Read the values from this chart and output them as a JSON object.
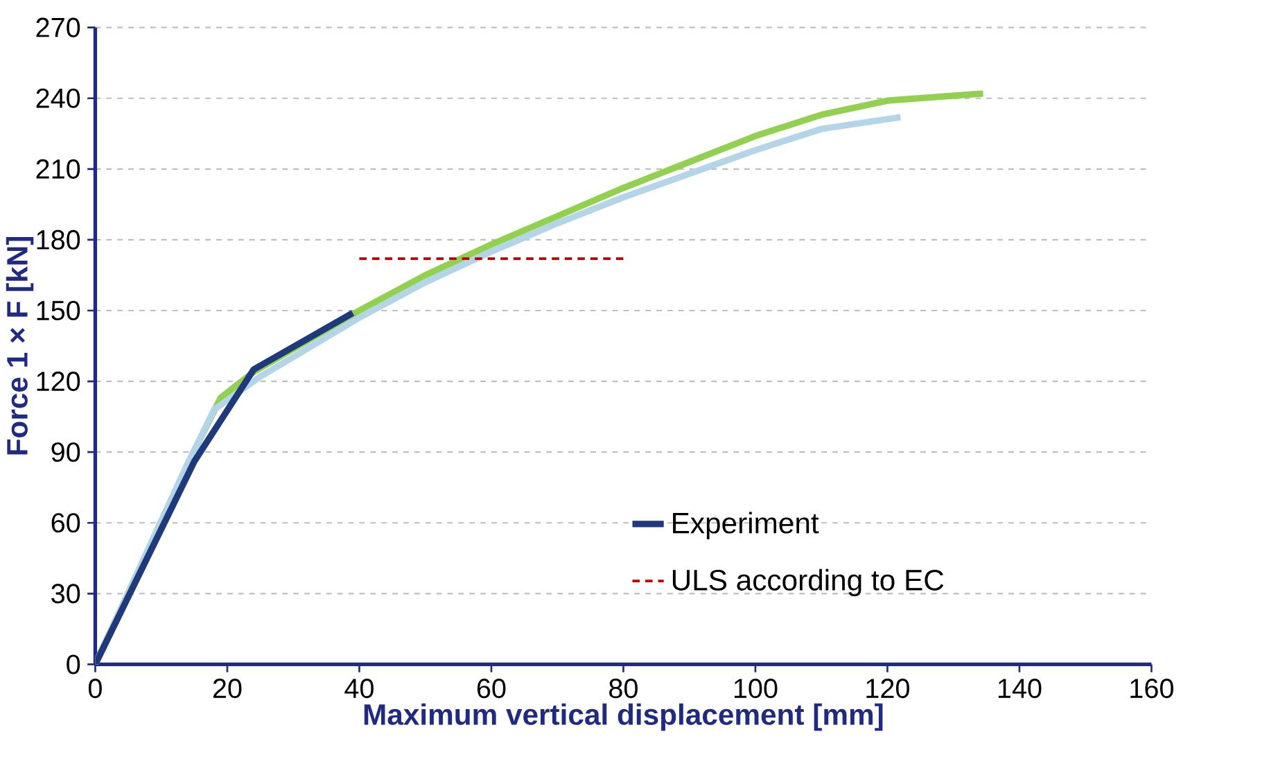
{
  "chart_data": {
    "type": "line",
    "xlabel": "Maximum vertical displacement [mm]",
    "ylabel": "Force 1 × F [kN]",
    "xlim": [
      0,
      160
    ],
    "xticks": [
      0,
      20,
      40,
      60,
      80,
      100,
      120,
      140,
      160
    ],
    "ylim": [
      0,
      270
    ],
    "yticks": [
      0,
      30,
      60,
      90,
      120,
      150,
      180,
      210,
      240,
      270
    ],
    "grid": "y",
    "legend": "right",
    "line_style": "solid",
    "marker": "none",
    "series": [
      {
        "color": "#92d050",
        "x": [
          0,
          14,
          19,
          24,
          40,
          50,
          60,
          70,
          80,
          90,
          100,
          110,
          120,
          134.5
        ],
        "values": [
          0,
          85,
          113,
          124,
          150,
          165,
          178,
          190,
          202,
          213,
          224,
          233,
          239,
          242
        ]
      },
      {
        "color": "#b4d4e8",
        "x": [
          0,
          14,
          18,
          25,
          40,
          50,
          60,
          70,
          80,
          90,
          100,
          110,
          122
        ],
        "values": [
          0,
          85,
          108,
          122,
          147,
          162,
          175,
          187,
          198,
          208,
          218,
          227,
          232
        ]
      },
      {
        "name": "Experiment",
        "color": "#1f3a7a",
        "x": [
          0,
          15,
          24,
          39
        ],
        "values": [
          0,
          86,
          125,
          149
        ]
      },
      {
        "name": "ULS according to EC",
        "color": "#c00000",
        "line_style": "dashed",
        "x": [
          40,
          80
        ],
        "values": [
          172,
          172
        ]
      }
    ]
  }
}
